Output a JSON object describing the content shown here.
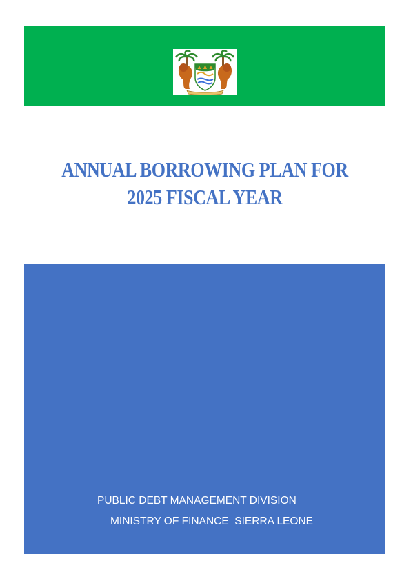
{
  "document": {
    "title_line_1": "ANNUAL BORROWING PLAN FOR",
    "title_line_2": "2025 FISCAL YEAR",
    "division": "PUBLIC DEBT MANAGEMENT DIVISION",
    "ministry": "MINISTRY OF FINANCE  SIERRA LEONE"
  },
  "colors": {
    "header_band": "#00b050",
    "title_text": "#4472c4",
    "cover_box": "#4472c4",
    "footer_text": "#ffffff"
  },
  "emblem": {
    "icon": "coat-of-arms-icon"
  }
}
